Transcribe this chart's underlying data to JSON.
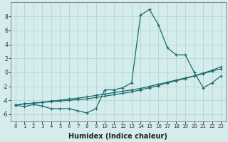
{
  "title": "",
  "xlabel": "Humidex (Indice chaleur)",
  "xlim": [
    -0.5,
    23.5
  ],
  "ylim": [
    -7,
    10
  ],
  "yticks": [
    -6,
    -4,
    -2,
    0,
    2,
    4,
    6,
    8
  ],
  "xticks": [
    0,
    1,
    2,
    3,
    4,
    5,
    6,
    7,
    8,
    9,
    10,
    11,
    12,
    13,
    14,
    15,
    16,
    17,
    18,
    19,
    20,
    21,
    22,
    23
  ],
  "background_color": "#d4ecec",
  "grid_color": "#b8d4d4",
  "line_color": "#1a6b6b",
  "line1_x": [
    0,
    1,
    2,
    3,
    4,
    5,
    6,
    7,
    8,
    9,
    10,
    11,
    12,
    13,
    14,
    15,
    16,
    17,
    18,
    19,
    20,
    21,
    22,
    23
  ],
  "line1_y": [
    -4.7,
    -4.9,
    -4.6,
    -4.8,
    -5.2,
    -5.2,
    -5.2,
    -5.5,
    -5.8,
    -5.2,
    -2.5,
    -2.5,
    -2.2,
    -1.5,
    8.2,
    9.0,
    6.8,
    3.5,
    2.5,
    2.5,
    0.0,
    -2.2,
    -1.5,
    -0.5
  ],
  "line2_x": [
    0,
    1,
    2,
    3,
    4,
    5,
    6,
    7,
    8,
    9,
    10,
    11,
    12,
    13,
    14,
    15,
    16,
    17,
    18,
    19,
    20,
    21,
    22,
    23
  ],
  "line2_y": [
    -4.7,
    -4.5,
    -4.4,
    -4.3,
    -4.1,
    -4.0,
    -3.8,
    -3.7,
    -3.5,
    -3.3,
    -3.1,
    -2.9,
    -2.7,
    -2.5,
    -2.3,
    -2.0,
    -1.7,
    -1.4,
    -1.1,
    -0.8,
    -0.5,
    -0.2,
    0.2,
    0.5
  ],
  "line3_x": [
    0,
    1,
    2,
    3,
    4,
    5,
    6,
    7,
    8,
    9,
    10,
    11,
    12,
    13,
    14,
    15,
    16,
    17,
    18,
    19,
    20,
    21,
    22,
    23
  ],
  "line3_y": [
    -4.7,
    -4.5,
    -4.4,
    -4.3,
    -4.2,
    -4.1,
    -4.0,
    -3.9,
    -3.8,
    -3.6,
    -3.4,
    -3.2,
    -3.0,
    -2.8,
    -2.5,
    -2.2,
    -1.9,
    -1.5,
    -1.2,
    -0.9,
    -0.5,
    -0.1,
    0.3,
    0.8
  ]
}
